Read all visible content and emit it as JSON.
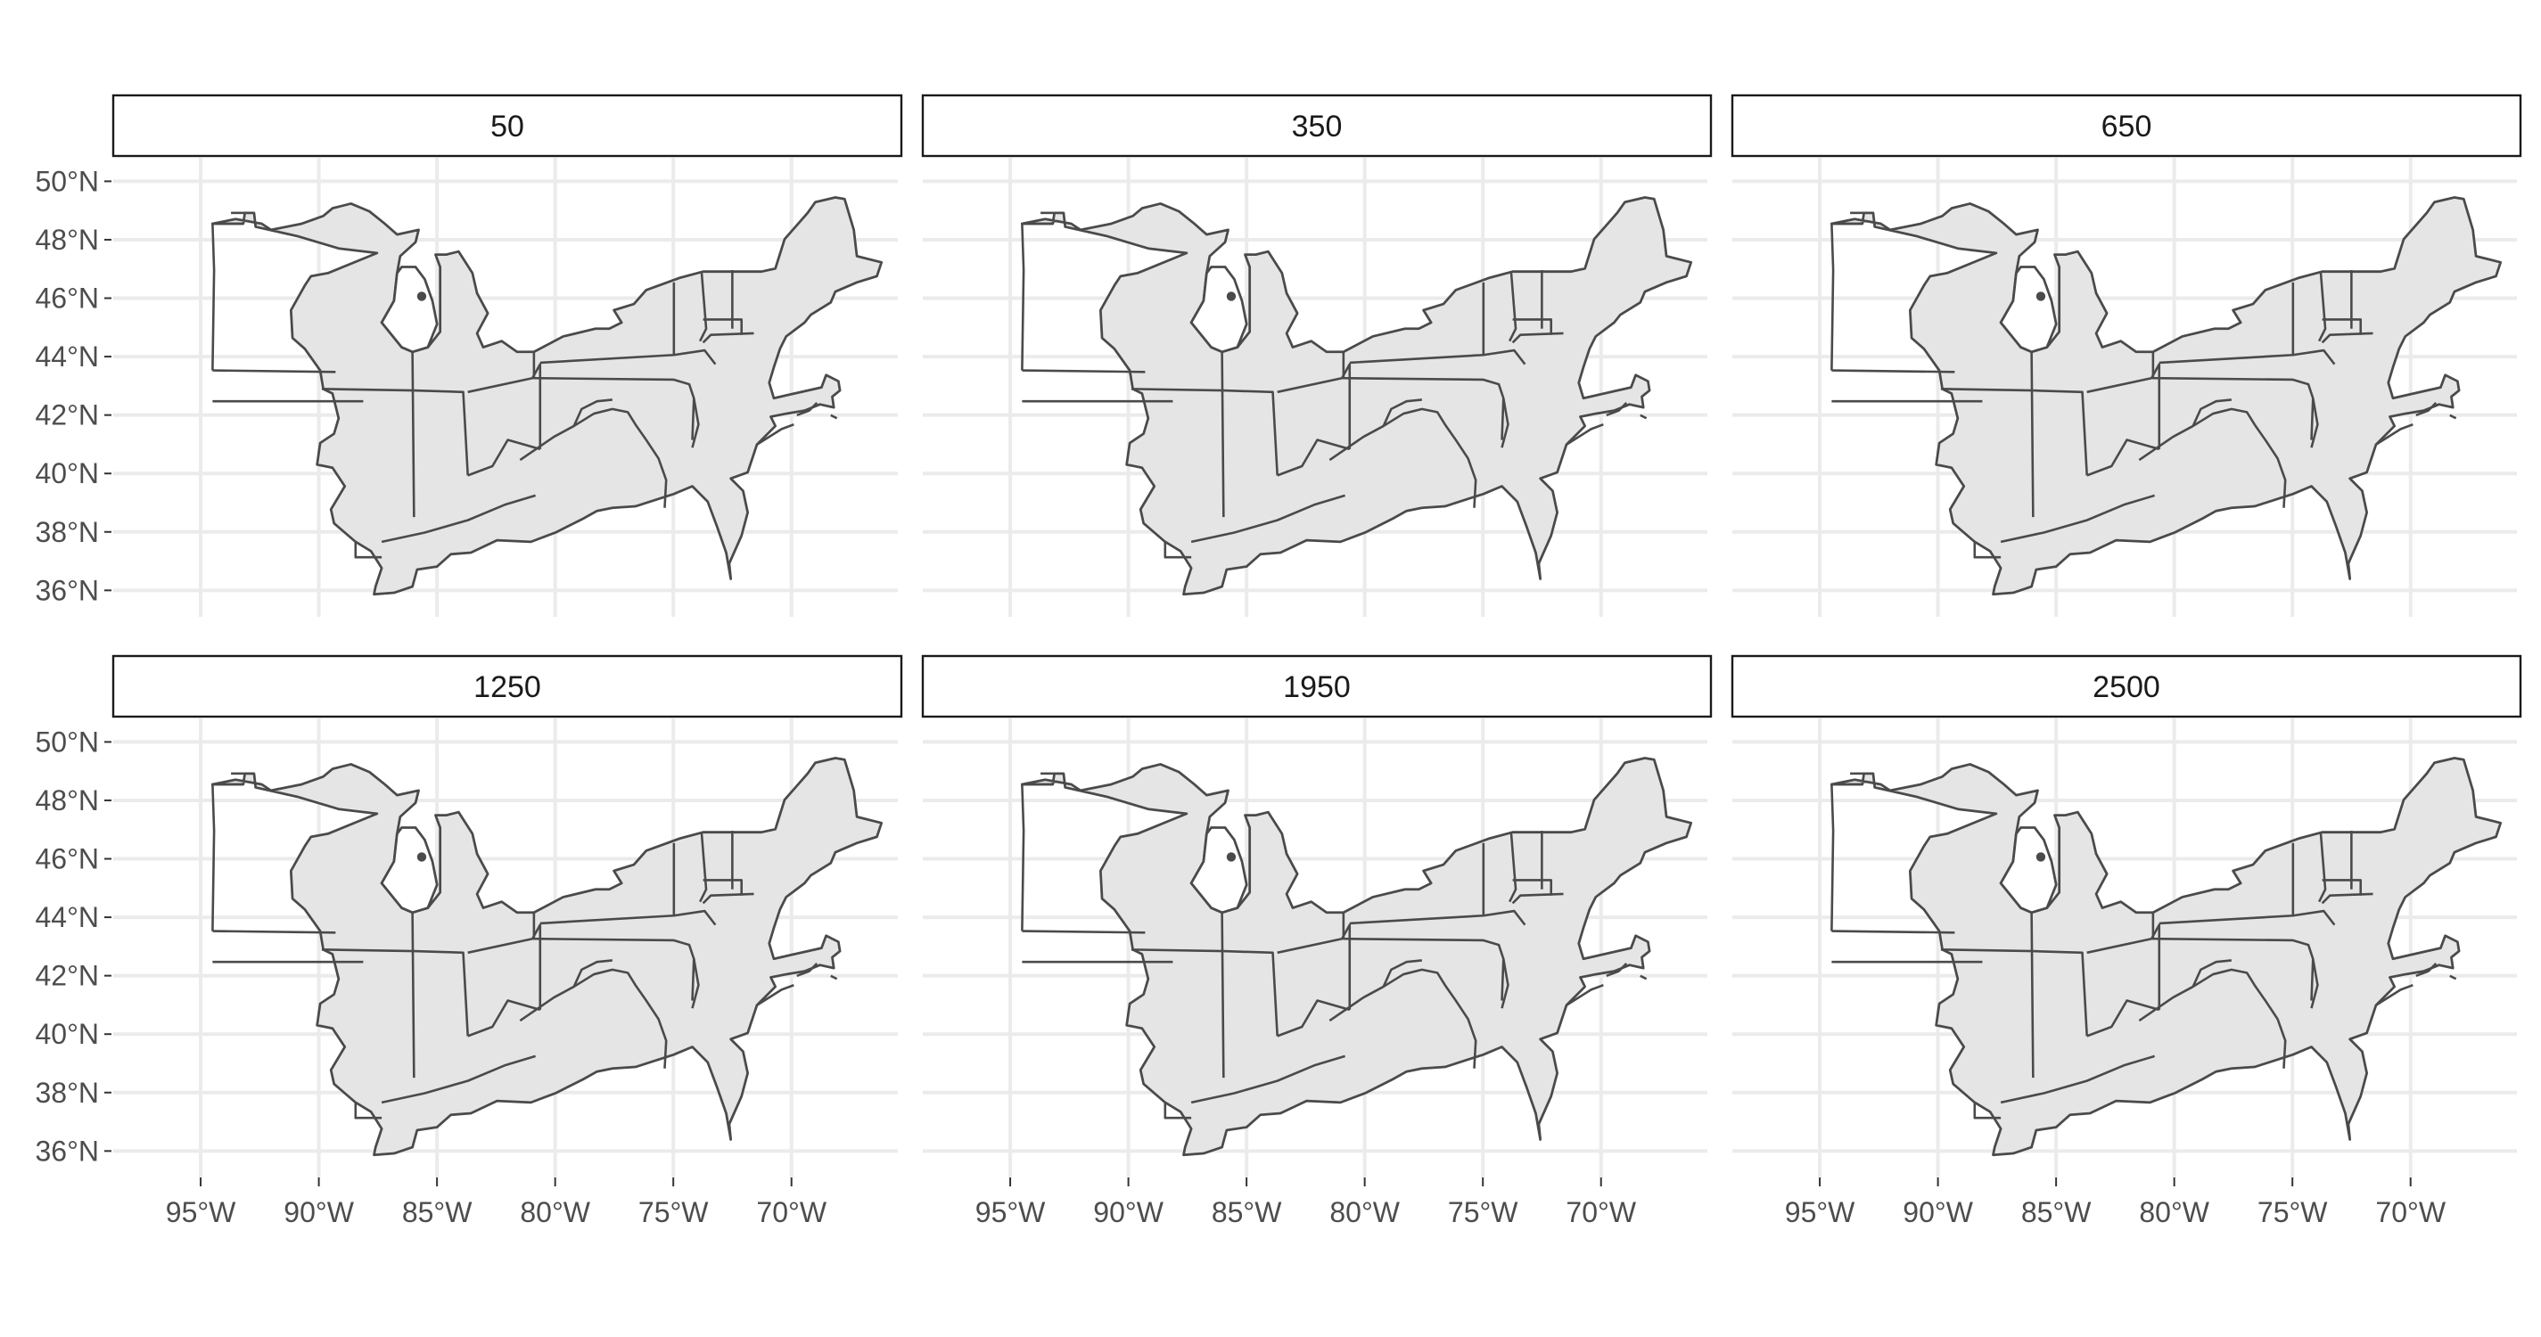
{
  "facets": [
    "50",
    "350",
    "650",
    "1250",
    "1950",
    "2500"
  ],
  "axes": {
    "lat_ticks": [
      {
        "deg": 50,
        "label": "50°N"
      },
      {
        "deg": 48,
        "label": "48°N"
      },
      {
        "deg": 46,
        "label": "46°N"
      },
      {
        "deg": 44,
        "label": "44°N"
      },
      {
        "deg": 42,
        "label": "42°N"
      },
      {
        "deg": 40,
        "label": "40°N"
      },
      {
        "deg": 38,
        "label": "38°N"
      },
      {
        "deg": 36,
        "label": "36°N"
      }
    ],
    "lon_ticks": [
      {
        "deg": -95,
        "label": "95°W"
      },
      {
        "deg": -90,
        "label": "90°W"
      },
      {
        "deg": -85,
        "label": "85°W"
      },
      {
        "deg": -80,
        "label": "80°W"
      },
      {
        "deg": -75,
        "label": "75°W"
      },
      {
        "deg": -70,
        "label": "70°W"
      }
    ]
  },
  "map": {
    "fill_color": "#e5e5e5",
    "border_color": "#4a4a4a",
    "grid_color": "#ebebeb"
  }
}
